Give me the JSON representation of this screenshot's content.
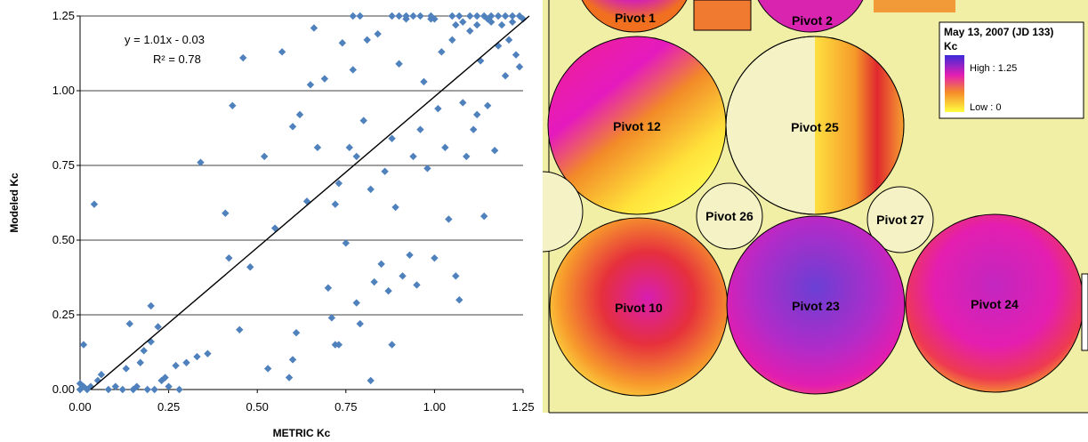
{
  "chart_data": {
    "type": "scatter",
    "title": "",
    "xlabel": "METRIC Kc",
    "ylabel": "Modeled Kc",
    "xlim": [
      0,
      1.25
    ],
    "ylim": [
      0,
      1.25
    ],
    "xticks": [
      "0.00",
      "0.25",
      "0.50",
      "0.75",
      "1.00",
      "1.25"
    ],
    "yticks": [
      "0.00",
      "0.25",
      "0.50",
      "0.75",
      "1.00",
      "1.25"
    ],
    "grid": "horizontal",
    "marker_color": "#4F81BD",
    "trendline": {
      "slope": 1.01,
      "intercept": -0.03
    },
    "annotations": {
      "equation": "y = 1.01x - 0.03",
      "r2": "R² = 0.78"
    },
    "points": [
      [
        0.0,
        0.0
      ],
      [
        0.0,
        0.02
      ],
      [
        0.01,
        0.01
      ],
      [
        0.01,
        0.15
      ],
      [
        0.02,
        0.0
      ],
      [
        0.03,
        0.01
      ],
      [
        0.04,
        0.62
      ],
      [
        0.05,
        0.03
      ],
      [
        0.06,
        0.05
      ],
      [
        0.08,
        0.0
      ],
      [
        0.1,
        0.01
      ],
      [
        0.12,
        0.0
      ],
      [
        0.13,
        0.07
      ],
      [
        0.14,
        0.22
      ],
      [
        0.15,
        0.0
      ],
      [
        0.16,
        0.01
      ],
      [
        0.17,
        0.09
      ],
      [
        0.18,
        0.13
      ],
      [
        0.19,
        0.0
      ],
      [
        0.2,
        0.28
      ],
      [
        0.2,
        0.16
      ],
      [
        0.21,
        0.0
      ],
      [
        0.22,
        0.21
      ],
      [
        0.23,
        0.03
      ],
      [
        0.24,
        0.04
      ],
      [
        0.25,
        0.01
      ],
      [
        0.27,
        0.08
      ],
      [
        0.28,
        0.0
      ],
      [
        0.3,
        0.09
      ],
      [
        0.33,
        0.11
      ],
      [
        0.34,
        0.76
      ],
      [
        0.36,
        0.12
      ],
      [
        0.41,
        0.59
      ],
      [
        0.42,
        0.44
      ],
      [
        0.43,
        0.95
      ],
      [
        0.45,
        0.2
      ],
      [
        0.46,
        1.11
      ],
      [
        0.48,
        0.41
      ],
      [
        0.52,
        0.78
      ],
      [
        0.53,
        0.07
      ],
      [
        0.55,
        0.54
      ],
      [
        0.57,
        1.13
      ],
      [
        0.59,
        0.04
      ],
      [
        0.6,
        0.88
      ],
      [
        0.6,
        0.1
      ],
      [
        0.61,
        0.19
      ],
      [
        0.62,
        0.92
      ],
      [
        0.64,
        0.63
      ],
      [
        0.65,
        1.02
      ],
      [
        0.66,
        1.21
      ],
      [
        0.67,
        0.81
      ],
      [
        0.69,
        1.04
      ],
      [
        0.7,
        0.34
      ],
      [
        0.71,
        0.24
      ],
      [
        0.72,
        0.62
      ],
      [
        0.72,
        0.15
      ],
      [
        0.73,
        0.15
      ],
      [
        0.73,
        0.69
      ],
      [
        0.74,
        1.16
      ],
      [
        0.75,
        0.49
      ],
      [
        0.76,
        0.81
      ],
      [
        0.77,
        1.07
      ],
      [
        0.78,
        0.78
      ],
      [
        0.78,
        0.29
      ],
      [
        0.79,
        0.22
      ],
      [
        0.8,
        0.9
      ],
      [
        0.81,
        1.17
      ],
      [
        0.82,
        0.67
      ],
      [
        0.82,
        0.03
      ],
      [
        0.83,
        0.36
      ],
      [
        0.84,
        1.19
      ],
      [
        0.85,
        0.42
      ],
      [
        0.86,
        0.73
      ],
      [
        0.87,
        0.33
      ],
      [
        0.88,
        0.84
      ],
      [
        0.88,
        0.15
      ],
      [
        0.89,
        0.61
      ],
      [
        0.9,
        1.09
      ],
      [
        0.91,
        0.38
      ],
      [
        0.92,
        1.24
      ],
      [
        0.93,
        0.45
      ],
      [
        0.94,
        0.78
      ],
      [
        0.95,
        0.35
      ],
      [
        0.96,
        0.87
      ],
      [
        0.97,
        1.03
      ],
      [
        0.98,
        0.74
      ],
      [
        0.99,
        1.24
      ],
      [
        1.0,
        0.44
      ],
      [
        1.01,
        0.94
      ],
      [
        1.02,
        1.13
      ],
      [
        1.03,
        0.81
      ],
      [
        1.04,
        0.57
      ],
      [
        1.05,
        1.17
      ],
      [
        1.06,
        0.38
      ],
      [
        1.07,
        0.3
      ],
      [
        1.08,
        0.96
      ],
      [
        1.09,
        0.78
      ],
      [
        1.1,
        1.2
      ],
      [
        1.11,
        0.87
      ],
      [
        1.12,
        0.92
      ],
      [
        1.13,
        1.1
      ],
      [
        1.14,
        0.58
      ],
      [
        1.15,
        0.95
      ],
      [
        1.16,
        1.23
      ],
      [
        1.17,
        0.8
      ],
      [
        1.18,
        1.15
      ],
      [
        1.19,
        1.22
      ],
      [
        1.2,
        1.05
      ],
      [
        1.21,
        1.17
      ],
      [
        1.22,
        1.23
      ],
      [
        1.23,
        1.12
      ],
      [
        1.24,
        1.08
      ],
      [
        1.25,
        1.24
      ],
      [
        0.77,
        1.25
      ],
      [
        0.79,
        1.25
      ],
      [
        0.88,
        1.25
      ],
      [
        0.9,
        1.25
      ],
      [
        0.92,
        1.25
      ],
      [
        0.94,
        1.25
      ],
      [
        0.96,
        1.25
      ],
      [
        0.99,
        1.25
      ],
      [
        1.0,
        1.24
      ],
      [
        1.05,
        1.25
      ],
      [
        1.07,
        1.25
      ],
      [
        1.1,
        1.25
      ],
      [
        1.12,
        1.25
      ],
      [
        1.14,
        1.25
      ],
      [
        1.16,
        1.25
      ],
      [
        1.18,
        1.25
      ],
      [
        1.2,
        1.25
      ],
      [
        1.22,
        1.25
      ],
      [
        1.24,
        1.25
      ],
      [
        1.08,
        1.23
      ],
      [
        1.12,
        1.22
      ],
      [
        1.15,
        1.24
      ],
      [
        1.06,
        1.22
      ]
    ]
  },
  "map": {
    "legend_title": "May 13, 2007 (JD 133)",
    "legend_subtitle": "Kc",
    "legend_high": "High : 1.25",
    "legend_low": "Low : 0",
    "pivots": [
      "Pivot 1",
      "Pivot 2",
      "Pivot 12",
      "Pivot 25",
      "Pivot 26",
      "Pivot 27",
      "Pivot 10",
      "Pivot 23",
      "Pivot 24"
    ],
    "colors": {
      "background": "#F1EEA5",
      "high": "#5A3FD0",
      "mid": "#E41EB4",
      "orange": "#F07020",
      "low": "#FFFF40"
    }
  }
}
